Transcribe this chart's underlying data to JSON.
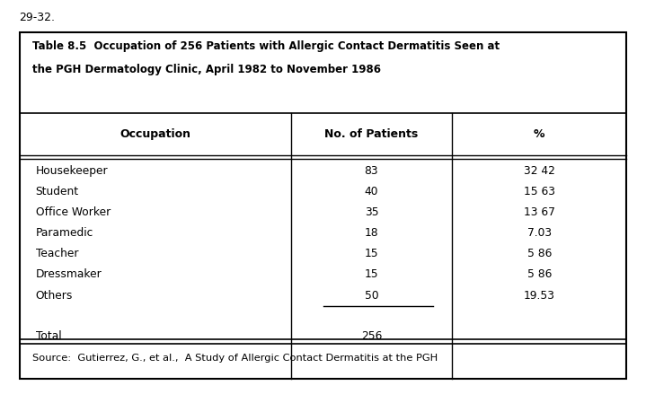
{
  "page_label": "29-32.",
  "title_line1": "Table 8.5  Occupation of 256 Patients with Allergic Contact Dermatitis Seen at",
  "title_line2": "the PGH Dermatology Clinic, April 1982 to November 1986",
  "col_headers": [
    "Occupation",
    "No. of Patients",
    "%"
  ],
  "rows": [
    [
      "Housekeeper",
      "83",
      "32 42"
    ],
    [
      "Student",
      "40",
      "15 63"
    ],
    [
      "Office Worker",
      "35",
      "13 67"
    ],
    [
      "Paramedic",
      "18",
      "7.03"
    ],
    [
      "Teacher",
      "15",
      "5 86"
    ],
    [
      "Dressmaker",
      "15",
      "5 86"
    ],
    [
      "Others",
      "50",
      "19.53"
    ]
  ],
  "total_row": [
    "Total",
    "256",
    ""
  ],
  "source_text": "Source:  Gutierrez, G., et al.,  A Study of Allergic Contact Dermatitis at the PGH",
  "bg_color": "#ffffff",
  "text_color": "#000000",
  "border_color": "#000000"
}
